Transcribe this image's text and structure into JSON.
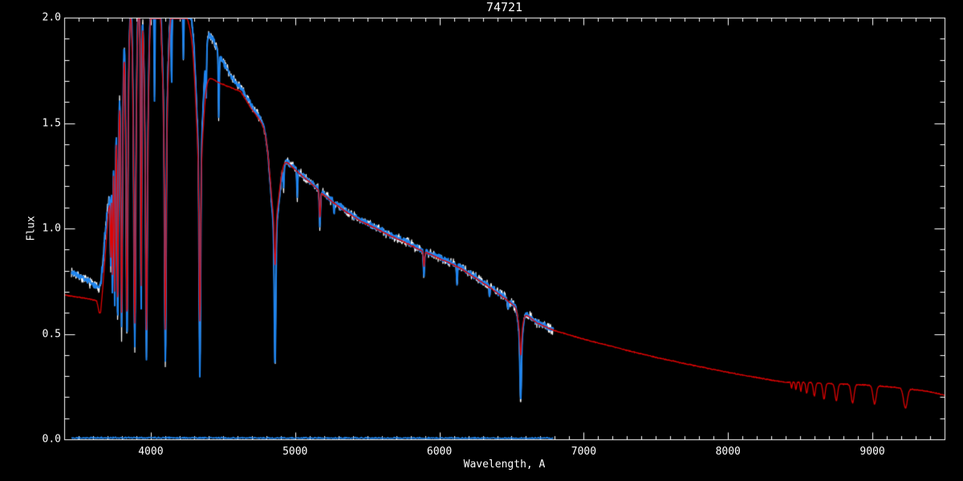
{
  "window": {
    "background": "#000000",
    "frame_color": "#ffffff",
    "text_color": "#ffffff"
  },
  "chart_data": {
    "type": "line",
    "title": "74721",
    "xlabel": "Wavelength, A",
    "ylabel": "Flux",
    "xlim": [
      3400,
      9500
    ],
    "ylim": [
      0.0,
      2.0
    ],
    "grid": false,
    "legend": "none",
    "frame": "box with inward ticks on all four sides",
    "x_ticks": {
      "major": [
        4000,
        5000,
        6000,
        7000,
        8000,
        9000
      ],
      "labels": [
        "4000",
        "5000",
        "6000",
        "7000",
        "8000",
        "9000"
      ],
      "minor_step": 100
    },
    "y_ticks": {
      "major": [
        0.0,
        0.5,
        1.0,
        1.5,
        2.0
      ],
      "labels": [
        "0.0",
        "0.5",
        "1.0",
        "1.5",
        "2.0"
      ],
      "minor_step": 0.1
    },
    "colors": {
      "observed_raw": "#ffffff",
      "observed": "#1e84ee",
      "model": "#dd0404"
    },
    "observed": {
      "description": "Observed spectrum (white raw + blue overplot), 3450-6790 A, Balmer series clipped at flux 2.0",
      "continuum": [
        [
          3450,
          0.795
        ],
        [
          3500,
          0.775
        ],
        [
          3550,
          0.755
        ],
        [
          3600,
          0.735
        ],
        [
          3640,
          0.72
        ],
        [
          3656,
          0.75
        ],
        [
          3675,
          0.9
        ],
        [
          3700,
          1.1
        ],
        [
          3725,
          1.3
        ],
        [
          3750,
          1.5
        ],
        [
          3775,
          1.7
        ],
        [
          3800,
          1.9
        ],
        [
          3835,
          2.04
        ],
        [
          3880,
          2.12
        ],
        [
          3940,
          2.17
        ],
        [
          4000,
          2.18
        ],
        [
          4080,
          2.16
        ],
        [
          4160,
          2.12
        ],
        [
          4240,
          2.06
        ],
        [
          4320,
          2.0
        ],
        [
          4380,
          1.96
        ],
        [
          4430,
          1.9
        ],
        [
          4490,
          1.8
        ],
        [
          4560,
          1.72
        ],
        [
          4622,
          1.67
        ],
        [
          4700,
          1.58
        ],
        [
          4770,
          1.51
        ],
        [
          4840,
          1.43
        ],
        [
          4900,
          1.36
        ],
        [
          4960,
          1.31
        ],
        [
          5030,
          1.265
        ],
        [
          5100,
          1.225
        ],
        [
          5180,
          1.175
        ],
        [
          5260,
          1.13
        ],
        [
          5350,
          1.085
        ],
        [
          5455,
          1.04
        ],
        [
          5560,
          1.005
        ],
        [
          5660,
          0.97
        ],
        [
          5760,
          0.94
        ],
        [
          5860,
          0.905
        ],
        [
          5960,
          0.875
        ],
        [
          6060,
          0.845
        ],
        [
          6160,
          0.81
        ],
        [
          6260,
          0.765
        ],
        [
          6360,
          0.72
        ],
        [
          6460,
          0.67
        ],
        [
          6540,
          0.625
        ],
        [
          6610,
          0.59
        ],
        [
          6680,
          0.555
        ],
        [
          6740,
          0.535
        ],
        [
          6790,
          0.52
        ]
      ],
      "lines": [
        [
          6563,
          14,
          0.46
        ],
        [
          6563,
          4.5,
          0.175
        ],
        [
          4861,
          30,
          1.0
        ],
        [
          4861,
          5,
          0.35
        ],
        [
          4340,
          24,
          1.35
        ],
        [
          4340,
          5,
          0.3
        ],
        [
          4101,
          18,
          1.45
        ],
        [
          4101,
          5,
          0.36
        ],
        [
          3970,
          14,
          1.3
        ],
        [
          3970,
          4.5,
          0.4
        ],
        [
          3933,
          4,
          0.62
        ],
        [
          3889,
          11,
          1.22
        ],
        [
          3889,
          4.5,
          0.44
        ],
        [
          3835,
          9,
          1.22
        ],
        [
          3835,
          4,
          0.47
        ],
        [
          3798,
          8,
          1.28
        ],
        [
          3798,
          4,
          0.5
        ],
        [
          3771,
          7,
          1.32
        ],
        [
          3771,
          3.5,
          0.55
        ],
        [
          3750,
          6,
          1.28
        ],
        [
          3750,
          3.5,
          0.62
        ],
        [
          3734,
          5,
          1.22
        ],
        [
          3734,
          3,
          0.7
        ],
        [
          3722,
          4,
          1.18
        ],
        [
          3722,
          3,
          0.8
        ],
        [
          3712,
          3.5,
          1.12
        ],
        [
          3703,
          3,
          1.08
        ],
        [
          4026,
          3,
          1.62
        ],
        [
          4144,
          3,
          1.7
        ],
        [
          4226,
          3,
          1.8
        ],
        [
          4383,
          3,
          1.6
        ],
        [
          4471,
          3,
          1.52
        ],
        [
          4920,
          3,
          1.18
        ],
        [
          5015,
          3,
          1.15
        ],
        [
          5172,
          4,
          1.01
        ],
        [
          5270,
          3,
          1.07
        ],
        [
          5893,
          4,
          0.78
        ],
        [
          6122,
          3,
          0.73
        ],
        [
          6347,
          3,
          0.68
        ],
        [
          6475,
          3,
          0.61
        ]
      ]
    },
    "model": {
      "description": "Red model/template spectrum, 3400-9500 A, with Balmer jump, Balmer and Paschen series",
      "continuum": [
        [
          3400,
          0.685
        ],
        [
          3460,
          0.678
        ],
        [
          3520,
          0.672
        ],
        [
          3580,
          0.665
        ],
        [
          3625,
          0.657
        ],
        [
          3643,
          0.6
        ],
        [
          3652,
          0.6
        ],
        [
          3665,
          0.7
        ],
        [
          3685,
          0.88
        ],
        [
          3705,
          1.06
        ],
        [
          3725,
          1.26
        ],
        [
          3750,
          1.47
        ],
        [
          3775,
          1.67
        ],
        [
          3800,
          1.86
        ],
        [
          3835,
          2.0
        ],
        [
          3880,
          2.08
        ],
        [
          3940,
          2.13
        ],
        [
          4000,
          2.14
        ],
        [
          4080,
          2.12
        ],
        [
          4160,
          2.08
        ],
        [
          4240,
          2.02
        ],
        [
          4310,
          1.88
        ],
        [
          4360,
          1.76
        ],
        [
          4400,
          1.72
        ],
        [
          4450,
          1.7
        ],
        [
          4510,
          1.68
        ],
        [
          4570,
          1.665
        ],
        [
          4622,
          1.65
        ],
        [
          4700,
          1.565
        ],
        [
          4770,
          1.5
        ],
        [
          4840,
          1.425
        ],
        [
          4900,
          1.355
        ],
        [
          4960,
          1.305
        ],
        [
          5030,
          1.26
        ],
        [
          5100,
          1.22
        ],
        [
          5180,
          1.17
        ],
        [
          5260,
          1.125
        ],
        [
          5350,
          1.08
        ],
        [
          5455,
          1.035
        ],
        [
          5560,
          1.0
        ],
        [
          5660,
          0.965
        ],
        [
          5760,
          0.935
        ],
        [
          5860,
          0.9
        ],
        [
          5960,
          0.87
        ],
        [
          6060,
          0.84
        ],
        [
          6160,
          0.805
        ],
        [
          6260,
          0.76
        ],
        [
          6360,
          0.715
        ],
        [
          6460,
          0.665
        ],
        [
          6540,
          0.62
        ],
        [
          6610,
          0.585
        ],
        [
          6680,
          0.55
        ],
        [
          6740,
          0.532
        ],
        [
          6800,
          0.515
        ],
        [
          6900,
          0.495
        ],
        [
          7000,
          0.475
        ],
        [
          7100,
          0.457
        ],
        [
          7200,
          0.44
        ],
        [
          7300,
          0.422
        ],
        [
          7400,
          0.405
        ],
        [
          7500,
          0.389
        ],
        [
          7600,
          0.374
        ],
        [
          7700,
          0.359
        ],
        [
          7800,
          0.345
        ],
        [
          7900,
          0.331
        ],
        [
          8000,
          0.318
        ],
        [
          8100,
          0.305
        ],
        [
          8200,
          0.293
        ],
        [
          8300,
          0.281
        ],
        [
          8400,
          0.27
        ],
        [
          8500,
          0.272
        ],
        [
          8600,
          0.268
        ],
        [
          8700,
          0.265
        ],
        [
          8800,
          0.262
        ],
        [
          8900,
          0.26
        ],
        [
          9000,
          0.256
        ],
        [
          9100,
          0.25
        ],
        [
          9250,
          0.24
        ],
        [
          9400,
          0.225
        ],
        [
          9500,
          0.21
        ]
      ],
      "lines": [
        [
          6563,
          14,
          0.5
        ],
        [
          6563,
          4.5,
          0.4
        ],
        [
          4861,
          30,
          1.05
        ],
        [
          4861,
          5,
          0.82
        ],
        [
          4340,
          24,
          1.3
        ],
        [
          4340,
          5,
          0.56
        ],
        [
          4101,
          18,
          1.4
        ],
        [
          4101,
          5,
          0.52
        ],
        [
          3970,
          14,
          1.25
        ],
        [
          3970,
          4.5,
          0.52
        ],
        [
          3933,
          4,
          0.7
        ],
        [
          3889,
          11,
          1.18
        ],
        [
          3889,
          4.5,
          0.55
        ],
        [
          3835,
          9,
          1.18
        ],
        [
          3835,
          4,
          0.58
        ],
        [
          3798,
          8,
          1.22
        ],
        [
          3798,
          4,
          0.6
        ],
        [
          3771,
          7,
          1.28
        ],
        [
          3771,
          3.5,
          0.64
        ],
        [
          3750,
          6,
          1.24
        ],
        [
          3750,
          3.5,
          0.7
        ],
        [
          3734,
          5,
          1.18
        ],
        [
          3734,
          3,
          0.78
        ],
        [
          3722,
          4,
          1.14
        ],
        [
          3722,
          3,
          0.86
        ],
        [
          3712,
          3.5,
          1.1
        ],
        [
          5172,
          4,
          1.05
        ],
        [
          5893,
          4,
          0.82
        ],
        [
          8440,
          4,
          0.243
        ],
        [
          8470,
          4.5,
          0.235
        ],
        [
          8504,
          5,
          0.228
        ],
        [
          8545,
          6,
          0.218
        ],
        [
          8598,
          7,
          0.205
        ],
        [
          8665,
          8,
          0.19
        ],
        [
          8750,
          9,
          0.182
        ],
        [
          8863,
          10,
          0.172
        ],
        [
          9015,
          11,
          0.168
        ],
        [
          9229,
          13,
          0.148
        ]
      ]
    },
    "sky": {
      "description": "Faint blue noise trace along flux = 0",
      "continuum": [
        [
          3450,
          0.006
        ],
        [
          4000,
          0.008
        ],
        [
          4600,
          0.006
        ],
        [
          6790,
          0.005
        ]
      ],
      "lines": []
    },
    "render": [
      {
        "name": "sky-noise-line",
        "source": "sky",
        "color_key": "observed",
        "width": 1.4,
        "range": [
          3450,
          6790
        ],
        "noise": 0.005,
        "seed": 11
      },
      {
        "name": "observed-raw",
        "source": "observed",
        "color_key": "observed_raw",
        "width": 1.2,
        "range": [
          3450,
          6790
        ],
        "noise": 0.028,
        "seed": 7,
        "forest": [
          3660,
          4150,
          0.05
        ]
      },
      {
        "name": "observed-main",
        "source": "observed",
        "color_key": "observed",
        "width": 2.0,
        "range": [
          3450,
          6790
        ],
        "noise": 0.016,
        "seed": 3,
        "forest": [
          3660,
          4150,
          0.04
        ]
      },
      {
        "name": "model-fit",
        "source": "model",
        "color_key": "model",
        "width": 1.3,
        "range": [
          3400,
          9500
        ],
        "noise": 0.003,
        "seed": 5
      }
    ]
  }
}
